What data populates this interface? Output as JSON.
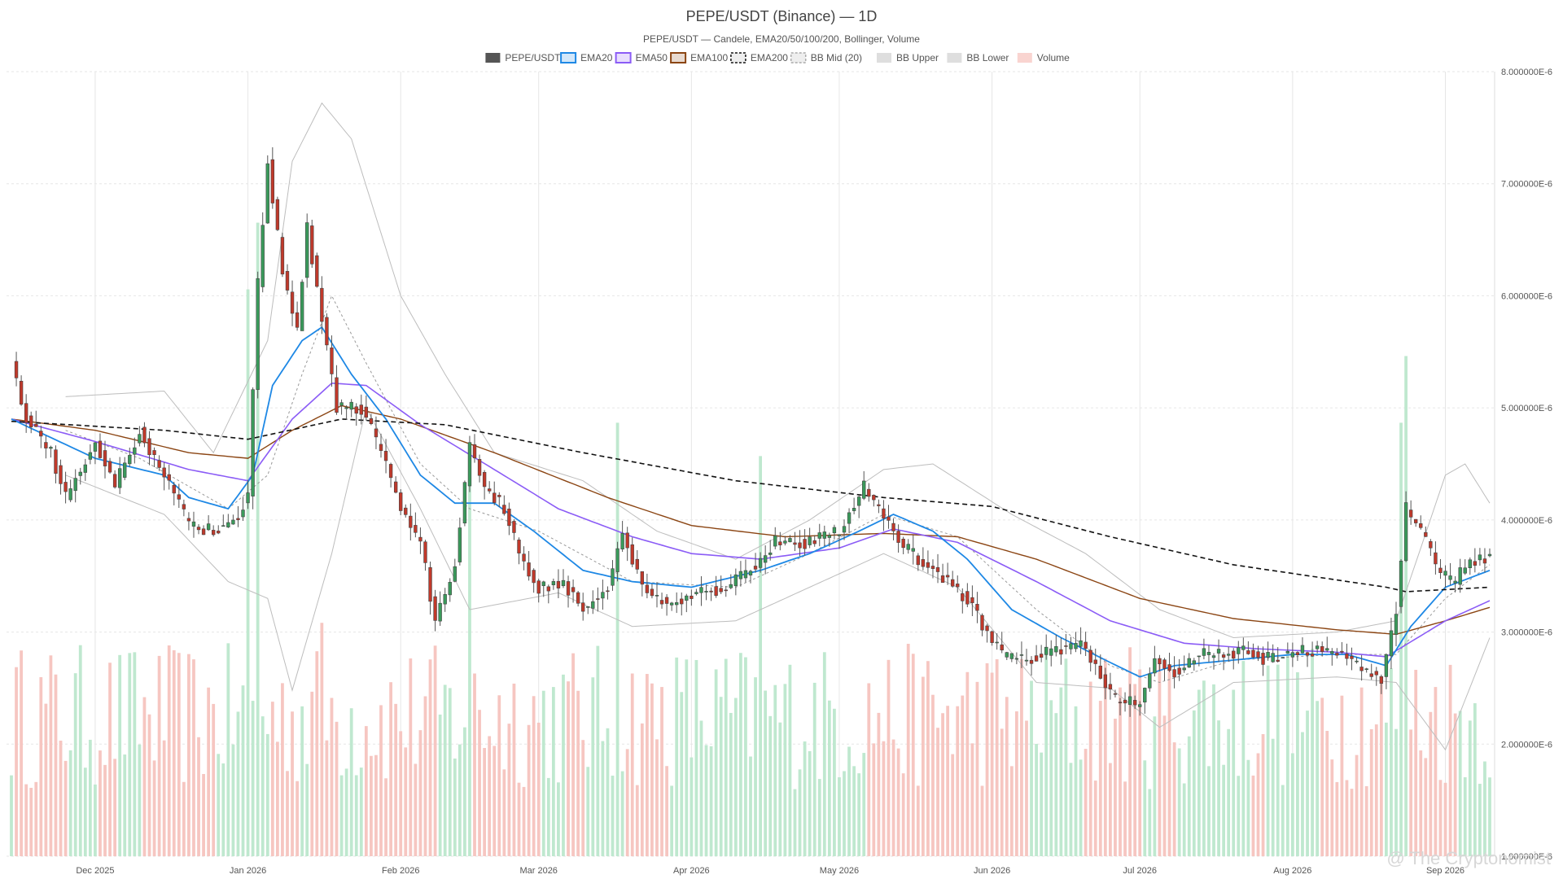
{
  "chart_data": {
    "type": "candlestick",
    "title": "PEPE/USDT (Binance) — 1D",
    "subtitle": "PEPE/USDT — Candele, EMA20/50/100/200, Bollinger, Volume",
    "y_unit": "e-6",
    "ylim": [
      1.0,
      8.0
    ],
    "y_ticks": [
      {
        "value": 8.0,
        "label": "8.000000E-6"
      },
      {
        "value": 7.0,
        "label": "7.000000E-6"
      },
      {
        "value": 6.0,
        "label": "6.000000E-6"
      },
      {
        "value": 5.0,
        "label": "5.000000E-6"
      },
      {
        "value": 4.0,
        "label": "4.000000E-6"
      },
      {
        "value": 3.0,
        "label": "3.000000E-6"
      },
      {
        "value": 2.0,
        "label": "2.000000E-6"
      },
      {
        "value": 1.0,
        "label": "1.000000E-6"
      }
    ],
    "x_ticks": [
      {
        "date": "2025-12-01",
        "label": "Dec 2025"
      },
      {
        "date": "2026-01-01",
        "label": "Jan 2026"
      },
      {
        "date": "2026-02-01",
        "label": "Feb 2026"
      },
      {
        "date": "2026-03-01",
        "label": "Mar 2026"
      },
      {
        "date": "2026-04-01",
        "label": "Apr 2026"
      },
      {
        "date": "2026-05-01",
        "label": "May 2026"
      },
      {
        "date": "2026-06-01",
        "label": "Jun 2026"
      },
      {
        "date": "2026-07-01",
        "label": "Jul 2026"
      },
      {
        "date": "2026-08-01",
        "label": "Aug 2026"
      },
      {
        "date": "2026-09-01",
        "label": "Sep 2026"
      }
    ],
    "date_range": [
      "2025-11-14",
      "2026-09-10"
    ],
    "legend": {
      "placement": "top-center",
      "items": [
        {
          "label": "PEPE/USDT",
          "swatch": "#555555",
          "style": "solid-fill"
        },
        {
          "label": "EMA20",
          "swatch": "#1e88e5",
          "style": "box"
        },
        {
          "label": "EMA50",
          "swatch": "#8b5cf6",
          "style": "box"
        },
        {
          "label": "EMA100",
          "swatch": "#8b4513",
          "style": "box"
        },
        {
          "label": "EMA200",
          "swatch": "#111111",
          "style": "dashed-box"
        },
        {
          "label": "BB Mid (20)",
          "swatch": "#aaaaaa",
          "style": "dashed-box"
        },
        {
          "label": "BB Upper",
          "swatch": "#c8c8c8",
          "style": "fill"
        },
        {
          "label": "BB Lower",
          "swatch": "#c8c8c8",
          "style": "fill"
        },
        {
          "label": "Volume",
          "swatch": "#f5b7b1",
          "style": "fill"
        }
      ]
    },
    "colors": {
      "up": "#3a9a5b",
      "down": "#c0392b",
      "volume_up": "#bfe8cf",
      "volume_down": "#f6c6c1",
      "ema20": "#1e88e5",
      "ema50": "#8b5cf6",
      "ema100": "#8b4513",
      "ema200": "#111111",
      "bb_mid": "#999999",
      "bb_band": "#bdbdbd"
    },
    "grid": true,
    "price_keypoints": [
      [
        "2025-11-14",
        5.4
      ],
      [
        "2025-11-17",
        4.9
      ],
      [
        "2025-11-22",
        4.6
      ],
      [
        "2025-11-25",
        4.2
      ],
      [
        "2025-12-01",
        4.7
      ],
      [
        "2025-12-05",
        4.3
      ],
      [
        "2025-12-10",
        4.8
      ],
      [
        "2025-12-15",
        4.4
      ],
      [
        "2025-12-20",
        3.95
      ],
      [
        "2025-12-25",
        3.9
      ],
      [
        "2025-12-30",
        4.05
      ],
      [
        "2026-01-01",
        4.2
      ],
      [
        "2026-01-03",
        6.1
      ],
      [
        "2026-01-05",
        7.2
      ],
      [
        "2026-01-08",
        6.2
      ],
      [
        "2026-01-11",
        5.7
      ],
      [
        "2026-01-13",
        6.6
      ],
      [
        "2026-01-16",
        5.8
      ],
      [
        "2026-01-19",
        5.0
      ],
      [
        "2026-01-24",
        5.0
      ],
      [
        "2026-01-28",
        4.6
      ],
      [
        "2026-02-01",
        4.1
      ],
      [
        "2026-02-05",
        3.8
      ],
      [
        "2026-02-08",
        3.1
      ],
      [
        "2026-02-12",
        3.6
      ],
      [
        "2026-02-15",
        4.7
      ],
      [
        "2026-02-18",
        4.3
      ],
      [
        "2026-02-22",
        4.1
      ],
      [
        "2026-02-26",
        3.6
      ],
      [
        "2026-03-01",
        3.4
      ],
      [
        "2026-03-06",
        3.45
      ],
      [
        "2026-03-10",
        3.2
      ],
      [
        "2026-03-15",
        3.4
      ],
      [
        "2026-03-18",
        3.9
      ],
      [
        "2026-03-22",
        3.4
      ],
      [
        "2026-03-27",
        3.25
      ],
      [
        "2026-04-01",
        3.35
      ],
      [
        "2026-04-08",
        3.4
      ],
      [
        "2026-04-14",
        3.6
      ],
      [
        "2026-04-18",
        3.8
      ],
      [
        "2026-04-24",
        3.8
      ],
      [
        "2026-05-01",
        3.9
      ],
      [
        "2026-05-06",
        4.3
      ],
      [
        "2026-05-09",
        4.1
      ],
      [
        "2026-05-13",
        3.8
      ],
      [
        "2026-05-20",
        3.55
      ],
      [
        "2026-05-27",
        3.3
      ],
      [
        "2026-05-31",
        3.0
      ],
      [
        "2026-06-03",
        2.8
      ],
      [
        "2026-06-08",
        2.75
      ],
      [
        "2026-06-14",
        2.85
      ],
      [
        "2026-06-19",
        2.9
      ],
      [
        "2026-06-23",
        2.6
      ],
      [
        "2026-06-26",
        2.4
      ],
      [
        "2026-07-01",
        2.35
      ],
      [
        "2026-07-04",
        2.75
      ],
      [
        "2026-07-08",
        2.65
      ],
      [
        "2026-07-13",
        2.8
      ],
      [
        "2026-07-18",
        2.8
      ],
      [
        "2026-07-23",
        2.85
      ],
      [
        "2026-07-26",
        2.75
      ],
      [
        "2026-07-31",
        2.8
      ],
      [
        "2026-08-06",
        2.85
      ],
      [
        "2026-08-11",
        2.8
      ],
      [
        "2026-08-16",
        2.65
      ],
      [
        "2026-08-19",
        2.6
      ],
      [
        "2026-08-22",
        3.2
      ],
      [
        "2026-08-24",
        4.1
      ],
      [
        "2026-08-27",
        3.9
      ],
      [
        "2026-08-31",
        3.5
      ],
      [
        "2026-09-03",
        3.45
      ],
      [
        "2026-09-06",
        3.65
      ],
      [
        "2026-09-10",
        3.65
      ]
    ],
    "ema20": [
      [
        "2025-11-14",
        4.9
      ],
      [
        "2025-12-01",
        4.55
      ],
      [
        "2025-12-15",
        4.4
      ],
      [
        "2025-12-20",
        4.2
      ],
      [
        "2025-12-28",
        4.1
      ],
      [
        "2026-01-02",
        4.4
      ],
      [
        "2026-01-06",
        5.2
      ],
      [
        "2026-01-12",
        5.6
      ],
      [
        "2026-01-16",
        5.72
      ],
      [
        "2026-01-22",
        5.3
      ],
      [
        "2026-01-29",
        4.9
      ],
      [
        "2026-02-05",
        4.4
      ],
      [
        "2026-02-12",
        4.15
      ],
      [
        "2026-02-20",
        4.15
      ],
      [
        "2026-02-28",
        3.9
      ],
      [
        "2026-03-10",
        3.55
      ],
      [
        "2026-03-20",
        3.45
      ],
      [
        "2026-04-01",
        3.4
      ],
      [
        "2026-04-15",
        3.55
      ],
      [
        "2026-04-25",
        3.7
      ],
      [
        "2026-05-05",
        3.9
      ],
      [
        "2026-05-12",
        4.05
      ],
      [
        "2026-05-20",
        3.9
      ],
      [
        "2026-05-27",
        3.65
      ],
      [
        "2026-06-05",
        3.2
      ],
      [
        "2026-06-15",
        2.95
      ],
      [
        "2026-06-24",
        2.75
      ],
      [
        "2026-07-01",
        2.6
      ],
      [
        "2026-07-08",
        2.7
      ],
      [
        "2026-07-20",
        2.75
      ],
      [
        "2026-08-01",
        2.8
      ],
      [
        "2026-08-12",
        2.8
      ],
      [
        "2026-08-20",
        2.7
      ],
      [
        "2026-08-25",
        3.05
      ],
      [
        "2026-09-01",
        3.4
      ],
      [
        "2026-09-10",
        3.55
      ]
    ],
    "ema50": [
      [
        "2025-11-14",
        4.9
      ],
      [
        "2025-12-01",
        4.7
      ],
      [
        "2025-12-20",
        4.45
      ],
      [
        "2026-01-01",
        4.35
      ],
      [
        "2026-01-10",
        4.9
      ],
      [
        "2026-01-18",
        5.22
      ],
      [
        "2026-01-25",
        5.2
      ],
      [
        "2026-02-05",
        4.85
      ],
      [
        "2026-02-20",
        4.45
      ],
      [
        "2026-03-05",
        4.1
      ],
      [
        "2026-03-20",
        3.85
      ],
      [
        "2026-04-01",
        3.7
      ],
      [
        "2026-04-15",
        3.65
      ],
      [
        "2026-05-01",
        3.75
      ],
      [
        "2026-05-12",
        3.92
      ],
      [
        "2026-05-25",
        3.8
      ],
      [
        "2026-06-10",
        3.45
      ],
      [
        "2026-06-25",
        3.1
      ],
      [
        "2026-07-10",
        2.9
      ],
      [
        "2026-07-25",
        2.85
      ],
      [
        "2026-08-10",
        2.82
      ],
      [
        "2026-08-20",
        2.78
      ],
      [
        "2026-09-01",
        3.1
      ],
      [
        "2026-09-10",
        3.28
      ]
    ],
    "ema100": [
      [
        "2025-11-14",
        4.9
      ],
      [
        "2025-12-01",
        4.8
      ],
      [
        "2025-12-20",
        4.6
      ],
      [
        "2026-01-01",
        4.55
      ],
      [
        "2026-01-10",
        4.8
      ],
      [
        "2026-01-20",
        5.02
      ],
      [
        "2026-02-01",
        4.9
      ],
      [
        "2026-02-20",
        4.6
      ],
      [
        "2026-03-15",
        4.2
      ],
      [
        "2026-04-01",
        3.95
      ],
      [
        "2026-04-20",
        3.85
      ],
      [
        "2026-05-10",
        3.88
      ],
      [
        "2026-05-25",
        3.85
      ],
      [
        "2026-06-10",
        3.65
      ],
      [
        "2026-07-01",
        3.3
      ],
      [
        "2026-07-20",
        3.12
      ],
      [
        "2026-08-10",
        3.02
      ],
      [
        "2026-08-22",
        2.98
      ],
      [
        "2026-09-01",
        3.1
      ],
      [
        "2026-09-10",
        3.22
      ]
    ],
    "ema200": [
      [
        "2025-11-14",
        4.88
      ],
      [
        "2025-12-15",
        4.8
      ],
      [
        "2026-01-01",
        4.72
      ],
      [
        "2026-01-20",
        4.9
      ],
      [
        "2026-02-10",
        4.85
      ],
      [
        "2026-03-10",
        4.6
      ],
      [
        "2026-04-10",
        4.35
      ],
      [
        "2026-05-10",
        4.2
      ],
      [
        "2026-06-01",
        4.12
      ],
      [
        "2026-06-25",
        3.85
      ],
      [
        "2026-07-20",
        3.6
      ],
      [
        "2026-08-20",
        3.4
      ],
      [
        "2026-08-24",
        3.36
      ],
      [
        "2026-09-10",
        3.4
      ]
    ],
    "bb_mid": [
      [
        "2025-11-25",
        4.8
      ],
      [
        "2025-12-10",
        4.55
      ],
      [
        "2025-12-28",
        4.1
      ],
      [
        "2026-01-05",
        4.4
      ],
      [
        "2026-01-12",
        5.3
      ],
      [
        "2026-01-18",
        6.0
      ],
      [
        "2026-01-25",
        5.4
      ],
      [
        "2026-02-05",
        4.5
      ],
      [
        "2026-02-15",
        4.1
      ],
      [
        "2026-03-01",
        3.9
      ],
      [
        "2026-03-20",
        3.45
      ],
      [
        "2026-04-10",
        3.4
      ],
      [
        "2026-04-25",
        3.7
      ],
      [
        "2026-05-10",
        4.05
      ],
      [
        "2026-05-25",
        3.85
      ],
      [
        "2026-06-10",
        3.2
      ],
      [
        "2026-06-25",
        2.7
      ],
      [
        "2026-07-05",
        2.55
      ],
      [
        "2026-07-20",
        2.75
      ],
      [
        "2026-08-10",
        2.8
      ],
      [
        "2026-08-22",
        2.8
      ],
      [
        "2026-09-01",
        3.3
      ],
      [
        "2026-09-10",
        3.6
      ]
    ],
    "bb_upper": [
      [
        "2025-11-25",
        5.1
      ],
      [
        "2025-12-15",
        5.15
      ],
      [
        "2025-12-25",
        4.6
      ],
      [
        "2026-01-05",
        5.6
      ],
      [
        "2026-01-10",
        7.2
      ],
      [
        "2026-01-16",
        7.72
      ],
      [
        "2026-01-22",
        7.4
      ],
      [
        "2026-02-01",
        6.0
      ],
      [
        "2026-02-10",
        5.3
      ],
      [
        "2026-02-20",
        4.6
      ],
      [
        "2026-03-10",
        4.35
      ],
      [
        "2026-03-25",
        3.9
      ],
      [
        "2026-04-10",
        3.65
      ],
      [
        "2026-04-25",
        4.0
      ],
      [
        "2026-05-10",
        4.45
      ],
      [
        "2026-05-20",
        4.5
      ],
      [
        "2026-06-05",
        4.05
      ],
      [
        "2026-06-20",
        3.7
      ],
      [
        "2026-07-05",
        3.2
      ],
      [
        "2026-07-20",
        2.95
      ],
      [
        "2026-08-10",
        3.0
      ],
      [
        "2026-08-22",
        3.1
      ],
      [
        "2026-09-01",
        4.4
      ],
      [
        "2026-09-05",
        4.5
      ],
      [
        "2026-09-10",
        4.15
      ]
    ],
    "bb_lower": [
      [
        "2025-11-25",
        4.4
      ],
      [
        "2025-12-15",
        4.05
      ],
      [
        "2025-12-28",
        3.45
      ],
      [
        "2026-01-05",
        3.3
      ],
      [
        "2026-01-10",
        2.48
      ],
      [
        "2026-01-18",
        3.7
      ],
      [
        "2026-01-25",
        5.0
      ],
      [
        "2026-02-05",
        4.1
      ],
      [
        "2026-02-15",
        3.2
      ],
      [
        "2026-03-05",
        3.35
      ],
      [
        "2026-03-20",
        3.05
      ],
      [
        "2026-04-10",
        3.1
      ],
      [
        "2026-04-25",
        3.4
      ],
      [
        "2026-05-10",
        3.7
      ],
      [
        "2026-05-25",
        3.4
      ],
      [
        "2026-06-10",
        2.55
      ],
      [
        "2026-06-25",
        2.5
      ],
      [
        "2026-07-05",
        2.15
      ],
      [
        "2026-07-20",
        2.55
      ],
      [
        "2026-08-10",
        2.6
      ],
      [
        "2026-08-22",
        2.55
      ],
      [
        "2026-09-01",
        1.95
      ],
      [
        "2026-09-10",
        2.95
      ]
    ],
    "volume_spikes": [
      [
        "2026-01-01",
        0.85
      ],
      [
        "2026-01-03",
        0.95
      ],
      [
        "2026-01-16",
        0.35
      ],
      [
        "2026-02-15",
        0.6
      ],
      [
        "2026-03-17",
        0.65
      ],
      [
        "2026-04-15",
        0.6
      ],
      [
        "2026-08-23",
        0.65
      ],
      [
        "2026-08-24",
        0.75
      ]
    ]
  },
  "watermark": "@ The Cryptonomist"
}
